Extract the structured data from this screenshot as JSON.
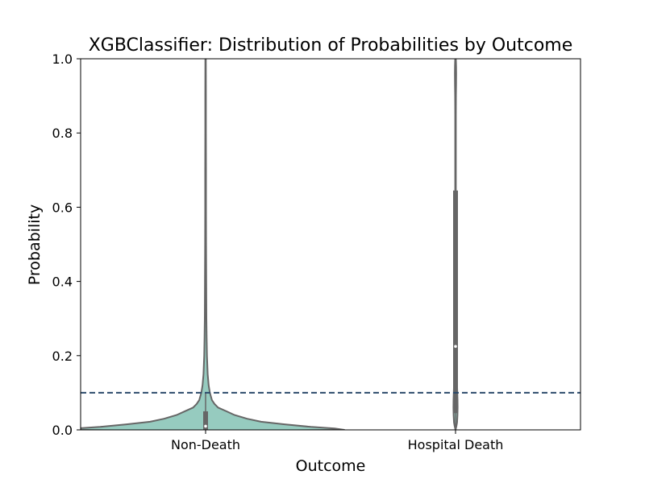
{
  "chart_data": {
    "type": "violin",
    "title": "XGBClassifier: Distribution of Probabilities by Outcome",
    "xlabel": "Outcome",
    "ylabel": "Probability",
    "ylim": [
      0.0,
      1.0
    ],
    "yticks": [
      "0.0",
      "0.2",
      "0.4",
      "0.6",
      "0.8",
      "1.0"
    ],
    "categories": [
      "Non-Death",
      "Hospital Death"
    ],
    "threshold": 0.1,
    "colors": {
      "violin_fill": "#96cbbf",
      "violin_edge": "#666666",
      "box": "#666666",
      "median_dot": "#ffffff",
      "threshold_line": "#2b4a6b",
      "axes": "#000000"
    },
    "violins": [
      {
        "category": "Non-Death",
        "quartiles": {
          "q1": 0.0,
          "median": 0.01,
          "q3": 0.05
        },
        "whiskers": {
          "low": 0.0,
          "high": 0.1
        },
        "density": [
          [
            -0.003,
            0.0
          ],
          [
            0.0,
            1.0
          ],
          [
            0.004,
            0.93
          ],
          [
            0.008,
            0.76
          ],
          [
            0.015,
            0.57
          ],
          [
            0.022,
            0.4
          ],
          [
            0.03,
            0.3
          ],
          [
            0.04,
            0.21
          ],
          [
            0.05,
            0.15
          ],
          [
            0.06,
            0.09
          ],
          [
            0.07,
            0.064
          ],
          [
            0.08,
            0.046
          ],
          [
            0.1,
            0.031
          ],
          [
            0.12,
            0.022
          ],
          [
            0.15,
            0.015
          ],
          [
            0.2,
            0.01
          ],
          [
            0.25,
            0.0075
          ],
          [
            0.3,
            0.006
          ],
          [
            0.4,
            0.0045
          ],
          [
            0.5,
            0.0037
          ],
          [
            0.6,
            0.003
          ],
          [
            0.7,
            0.0027
          ],
          [
            0.8,
            0.0024
          ],
          [
            0.9,
            0.0022
          ],
          [
            1.0,
            0.002
          ]
        ]
      },
      {
        "category": "Hospital Death",
        "quartiles": {
          "q1": 0.045,
          "median": 0.225,
          "q3": 0.645
        },
        "whiskers": {
          "low": 0.0,
          "high": 1.0
        },
        "density": [
          [
            0.0,
            0.0
          ],
          [
            0.01,
            0.05
          ],
          [
            0.02,
            0.085
          ],
          [
            0.04,
            0.11
          ],
          [
            0.06,
            0.12
          ],
          [
            0.08,
            0.115
          ],
          [
            0.1,
            0.1
          ],
          [
            0.12,
            0.085
          ],
          [
            0.15,
            0.07
          ],
          [
            0.18,
            0.055
          ],
          [
            0.22,
            0.042
          ],
          [
            0.26,
            0.032
          ],
          [
            0.3,
            0.025
          ],
          [
            0.35,
            0.02
          ],
          [
            0.4,
            0.017
          ],
          [
            0.45,
            0.016
          ],
          [
            0.5,
            0.015
          ],
          [
            0.55,
            0.015
          ],
          [
            0.6,
            0.016
          ],
          [
            0.65,
            0.017
          ],
          [
            0.7,
            0.018
          ],
          [
            0.75,
            0.018
          ],
          [
            0.8,
            0.018
          ],
          [
            0.85,
            0.02
          ],
          [
            0.9,
            0.025
          ],
          [
            0.93,
            0.03
          ],
          [
            0.96,
            0.035
          ],
          [
            0.98,
            0.033
          ],
          [
            0.995,
            0.025
          ],
          [
            1.0,
            0.015
          ]
        ]
      }
    ]
  }
}
